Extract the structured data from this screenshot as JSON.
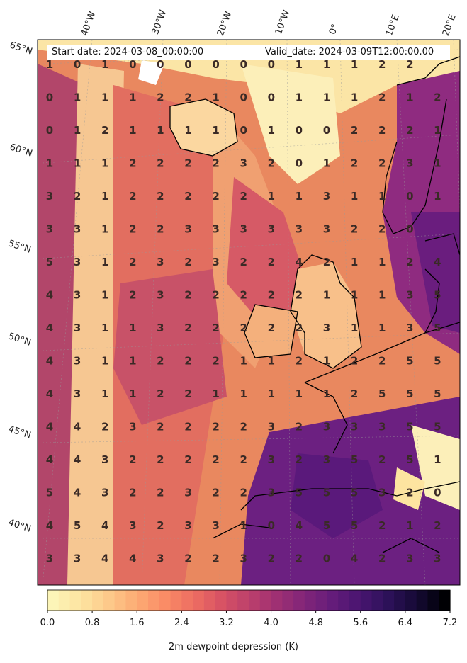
{
  "header": {
    "start_date": "Start date: 2024-03-08_00:00:00",
    "valid_date": "Valid_date: 2024-03-09T12:00:00.00"
  },
  "lat_labels": [
    "65°N",
    "60°N",
    "55°N",
    "50°N",
    "45°N",
    "40°N"
  ],
  "lon_labels": [
    "40°W",
    "30°W",
    "20°W",
    "10°W",
    "0°",
    "10°E",
    "20°E"
  ],
  "grid_values": [
    [
      1,
      0,
      1,
      0,
      0,
      0,
      0,
      0,
      0,
      1,
      1,
      1,
      2,
      2,
      ""
    ],
    [
      0,
      1,
      1,
      1,
      2,
      2,
      1,
      0,
      0,
      1,
      1,
      1,
      2,
      1,
      2
    ],
    [
      0,
      1,
      2,
      1,
      1,
      1,
      1,
      0,
      1,
      0,
      0,
      2,
      2,
      2,
      1
    ],
    [
      1,
      1,
      1,
      2,
      2,
      2,
      2,
      3,
      2,
      0,
      1,
      2,
      2,
      3,
      1
    ],
    [
      3,
      2,
      1,
      2,
      2,
      2,
      2,
      2,
      1,
      1,
      3,
      1,
      1,
      0,
      1
    ],
    [
      3,
      3,
      1,
      2,
      2,
      3,
      3,
      3,
      3,
      3,
      3,
      2,
      2,
      0,
      ""
    ],
    [
      5,
      3,
      1,
      2,
      3,
      2,
      3,
      2,
      2,
      4,
      2,
      1,
      1,
      2,
      4
    ],
    [
      4,
      3,
      1,
      2,
      3,
      2,
      2,
      2,
      2,
      2,
      1,
      1,
      1,
      3,
      5
    ],
    [
      4,
      3,
      1,
      1,
      3,
      2,
      2,
      2,
      2,
      2,
      3,
      1,
      1,
      3,
      5
    ],
    [
      4,
      3,
      1,
      1,
      2,
      2,
      2,
      1,
      1,
      2,
      1,
      2,
      2,
      5,
      5
    ],
    [
      4,
      3,
      1,
      1,
      2,
      2,
      1,
      1,
      1,
      1,
      1,
      2,
      5,
      5,
      5
    ],
    [
      4,
      4,
      2,
      3,
      2,
      2,
      2,
      2,
      3,
      2,
      3,
      3,
      3,
      5,
      5
    ],
    [
      4,
      4,
      3,
      2,
      2,
      2,
      2,
      2,
      3,
      2,
      3,
      5,
      2,
      5,
      1
    ],
    [
      5,
      4,
      3,
      2,
      2,
      3,
      2,
      2,
      3,
      5,
      5,
      5,
      3,
      2,
      0
    ],
    [
      4,
      5,
      4,
      3,
      2,
      3,
      3,
      1,
      0,
      4,
      5,
      5,
      2,
      1,
      2
    ],
    [
      3,
      3,
      4,
      4,
      3,
      2,
      2,
      3,
      2,
      2,
      0,
      4,
      2,
      3,
      3
    ]
  ],
  "colorbar": {
    "ticks": [
      "0.0",
      "0.8",
      "1.6",
      "2.4",
      "3.2",
      "4.0",
      "4.8",
      "5.6",
      "6.4",
      "7.2"
    ],
    "min": 0,
    "max": 7.2,
    "title": "2m dewpoint depression (K)",
    "colors": [
      "#fcf5b8",
      "#fde4a0",
      "#fdc98a",
      "#fcab74",
      "#fa8c66",
      "#ee6e62",
      "#d85364",
      "#bd406b",
      "#9f3073",
      "#812579",
      "#641c7a",
      "#481570",
      "#2c1158",
      "#150a35",
      "#000004"
    ]
  }
}
